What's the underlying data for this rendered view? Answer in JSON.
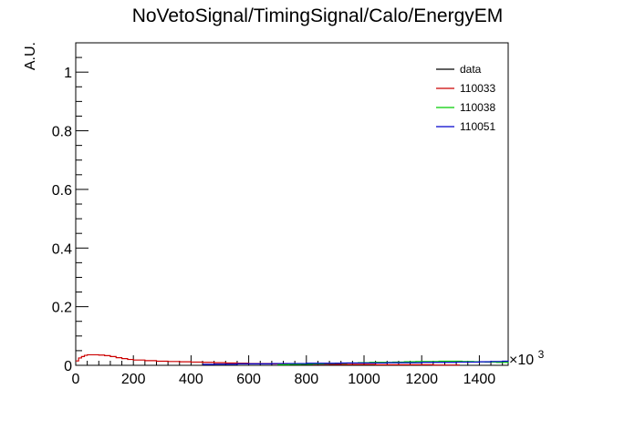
{
  "chart_data": {
    "type": "line",
    "title": "NoVetoSignal/TimingSignal/Calo/EnergyEM",
    "xlabel": "",
    "ylabel": "A.U.",
    "x_multiplier_label": "×10",
    "x_multiplier_exponent": "3",
    "xlim": [
      0,
      1500
    ],
    "ylim": [
      0,
      1.1
    ],
    "x_ticks": [
      0,
      200,
      400,
      600,
      800,
      1000,
      1200,
      1400
    ],
    "x_tick_labels": [
      "0",
      "200",
      "400",
      "600",
      "800",
      "1000",
      "1200",
      "1400"
    ],
    "y_ticks": [
      0,
      0.2,
      0.4,
      0.6,
      0.8,
      1
    ],
    "y_tick_labels": [
      "0",
      "0.2",
      "0.4",
      "0.6",
      "0.8",
      "1"
    ],
    "legend_position": "top-right",
    "series": [
      {
        "name": "data",
        "color": "#000000",
        "x": [],
        "y": []
      },
      {
        "name": "110033",
        "color": "#cc0000",
        "x": [
          0,
          10,
          20,
          30,
          40,
          60,
          80,
          100,
          120,
          140,
          160,
          180,
          200,
          240,
          280,
          320,
          360,
          400,
          440,
          480,
          520,
          560,
          600,
          640,
          680,
          720,
          760,
          800,
          840,
          880,
          920,
          960,
          1000,
          1040,
          1080,
          1120,
          1160,
          1200,
          1240,
          1280,
          1320
        ],
        "y": [
          0.015,
          0.025,
          0.03,
          0.034,
          0.036,
          0.036,
          0.035,
          0.033,
          0.03,
          0.026,
          0.023,
          0.02,
          0.018,
          0.016,
          0.014,
          0.013,
          0.012,
          0.011,
          0.01,
          0.009,
          0.008,
          0.007,
          0.006,
          0.006,
          0.005,
          0.005,
          0.004,
          0.004,
          0.004,
          0.003,
          0.003,
          0.003,
          0.003,
          0.002,
          0.002,
          0.002,
          0.002,
          0.002,
          0.001,
          0.001,
          0.001
        ]
      },
      {
        "name": "110038",
        "color": "#00cc00",
        "x": [
          700,
          740,
          780,
          820,
          860,
          900,
          940,
          980,
          1020,
          1060,
          1100,
          1140,
          1180,
          1220,
          1260,
          1300,
          1340,
          1380,
          1420,
          1460,
          1500
        ],
        "y": [
          0.002,
          0.003,
          0.004,
          0.005,
          0.006,
          0.007,
          0.008,
          0.009,
          0.01,
          0.01,
          0.011,
          0.012,
          0.013,
          0.013,
          0.014,
          0.014,
          0.013,
          0.012,
          0.011,
          0.01,
          0.008
        ]
      },
      {
        "name": "110051",
        "color": "#0000cc",
        "x": [
          440,
          480,
          520,
          560,
          600,
          640,
          680,
          720,
          760,
          800,
          840,
          880,
          920,
          960,
          1000,
          1040,
          1080,
          1120,
          1160,
          1200,
          1240,
          1280,
          1320,
          1360,
          1400,
          1440,
          1480,
          1500
        ],
        "y": [
          0.003,
          0.004,
          0.004,
          0.005,
          0.005,
          0.005,
          0.006,
          0.006,
          0.006,
          0.007,
          0.007,
          0.007,
          0.008,
          0.008,
          0.008,
          0.008,
          0.009,
          0.009,
          0.009,
          0.01,
          0.01,
          0.01,
          0.011,
          0.011,
          0.012,
          0.013,
          0.014,
          0.016
        ]
      }
    ]
  }
}
